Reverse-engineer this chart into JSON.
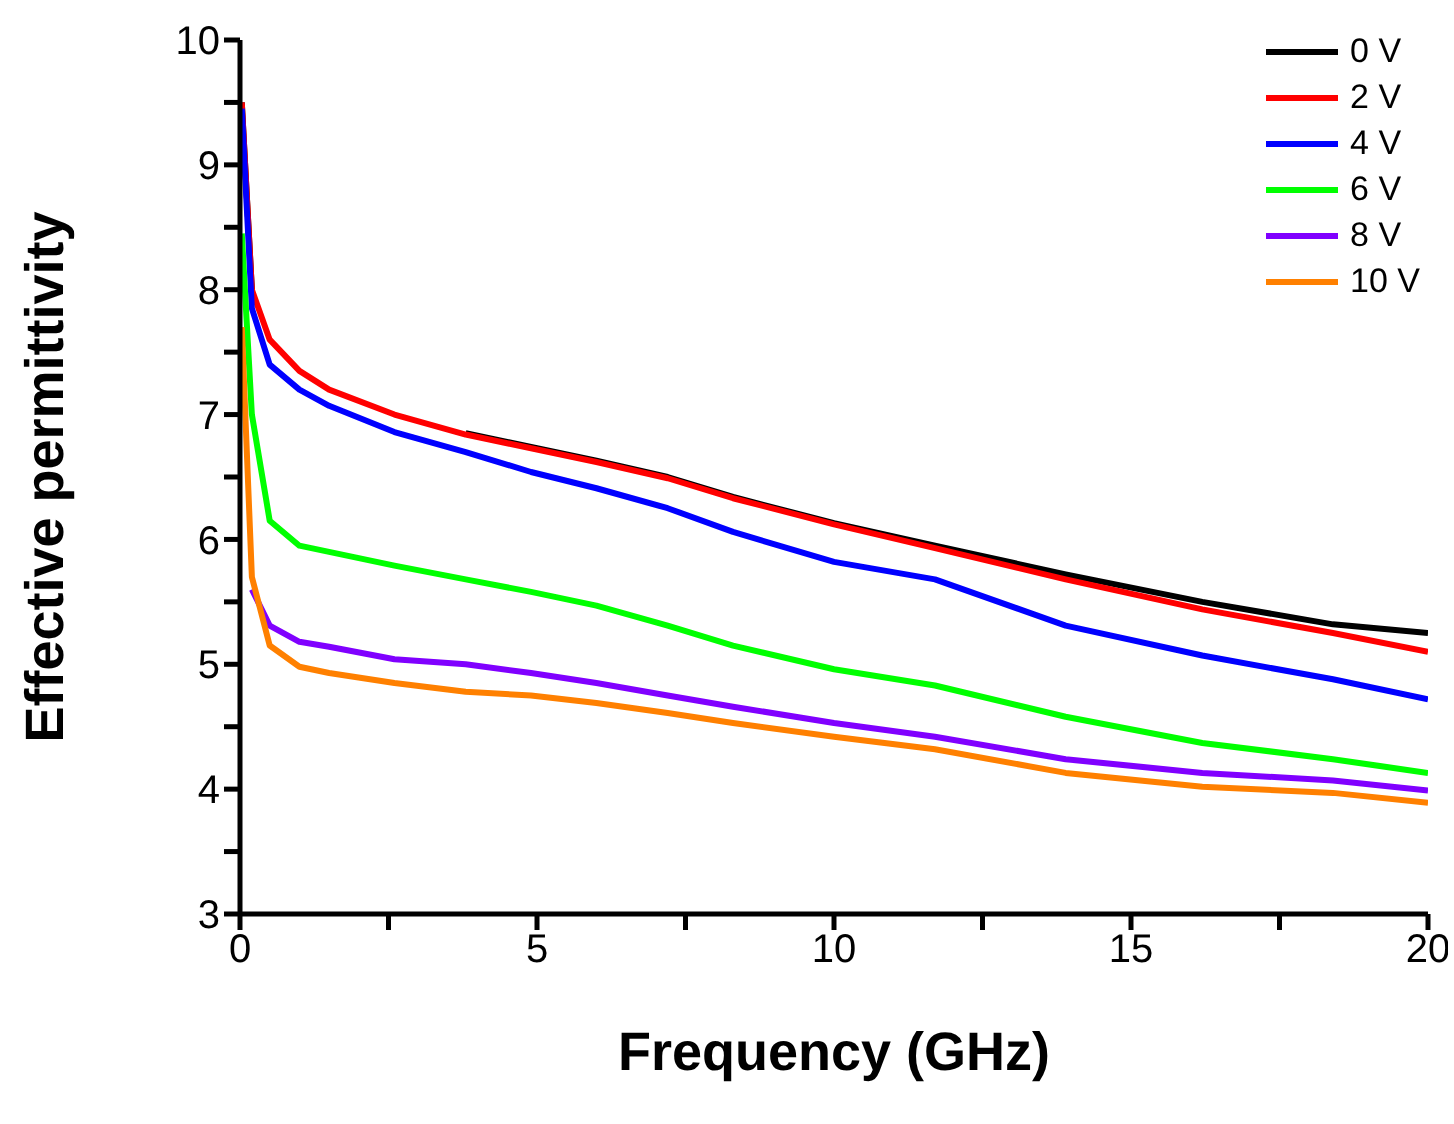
{
  "chart_data": {
    "type": "line",
    "xlabel": "Frequency (GHz)",
    "ylabel": "Effective permittivity",
    "x": [
      0.03,
      0.2,
      0.5,
      1,
      1.5,
      2.6,
      3.8,
      4.9,
      6,
      7.2,
      8.3,
      10,
      11.7,
      13.9,
      16.2,
      18.4,
      20
    ],
    "series": [
      {
        "name": "0 V",
        "color": "#000000",
        "values": [
          9.5,
          8.0,
          null,
          null,
          null,
          null,
          6.85,
          6.74,
          6.63,
          6.5,
          6.34,
          6.13,
          5.95,
          5.72,
          5.5,
          5.32,
          5.25
        ]
      },
      {
        "name": "2 V",
        "color": "#ff0000",
        "values": [
          9.5,
          8.0,
          7.6,
          7.35,
          7.2,
          7.0,
          6.84,
          6.73,
          6.62,
          6.49,
          6.33,
          6.12,
          5.93,
          5.68,
          5.44,
          5.25,
          5.1
        ]
      },
      {
        "name": "4 V",
        "color": "#0000ff",
        "values": [
          9.45,
          7.85,
          7.4,
          7.2,
          7.07,
          6.86,
          6.7,
          6.54,
          6.41,
          6.25,
          6.06,
          5.82,
          5.68,
          5.31,
          5.07,
          4.88,
          4.72
        ]
      },
      {
        "name": "6 V",
        "color": "#00ff00",
        "values": [
          8.45,
          7.0,
          6.15,
          5.95,
          5.9,
          5.79,
          5.68,
          5.58,
          5.47,
          5.31,
          5.15,
          4.96,
          4.83,
          4.58,
          4.37,
          4.24,
          4.13
        ]
      },
      {
        "name": "8 V",
        "color": "#8000ff",
        "values": [
          null,
          5.6,
          5.31,
          5.18,
          5.14,
          5.04,
          5.0,
          4.93,
          4.85,
          4.75,
          4.66,
          4.53,
          4.42,
          4.24,
          4.13,
          4.07,
          3.99
        ]
      },
      {
        "name": "10 V",
        "color": "#ff8000",
        "values": [
          7.7,
          5.7,
          5.15,
          4.98,
          4.93,
          4.85,
          4.78,
          4.75,
          4.69,
          4.61,
          4.53,
          4.42,
          4.32,
          4.13,
          4.02,
          3.97,
          3.89
        ]
      }
    ],
    "xlim": [
      0,
      20
    ],
    "xticks": [
      0,
      {
        "value": 2.5,
        "label": null
      },
      5,
      {
        "value": 7.5,
        "label": null
      },
      10,
      {
        "value": 12.5,
        "label": null
      },
      15,
      {
        "value": 17.5,
        "label": null
      },
      20
    ],
    "ylim": [
      3,
      10
    ],
    "yticks": [
      3,
      {
        "value": 3.5,
        "label": null
      },
      4,
      {
        "value": 4.5,
        "label": null
      },
      5,
      {
        "value": 5.5,
        "label": null
      },
      6,
      {
        "value": 6.5,
        "label": null
      },
      7,
      {
        "value": 7.5,
        "label": null
      },
      8,
      {
        "value": 8.5,
        "label": null
      },
      9,
      {
        "value": 9.5,
        "label": null
      },
      10
    ],
    "grid": false,
    "legend": "top right",
    "marker": "none",
    "line_style": "solid"
  }
}
